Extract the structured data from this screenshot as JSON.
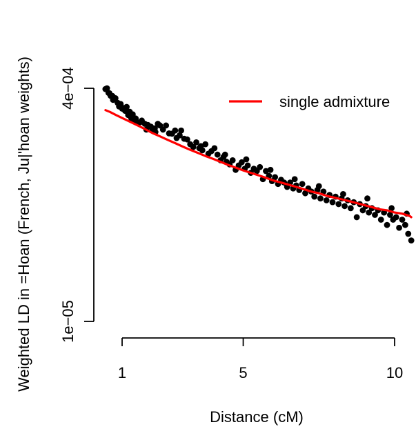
{
  "chart_data": {
    "type": "scatter",
    "xlabel": "Distance (cM)",
    "ylabel": "Weighted LD in =Hoan (French, Ju|'hoan weights)",
    "xlim": [
      0.5,
      10.5
    ],
    "ylim": [
      1e-05,
      0.0004
    ],
    "x_ticks": [
      1,
      5,
      10
    ],
    "x_tick_labels": [
      "1",
      "5",
      "10"
    ],
    "y_ticks": [
      1e-05,
      0.0004
    ],
    "y_tick_labels": [
      "1e−05",
      "4e−04"
    ],
    "grid": false,
    "legend_position": "top-right",
    "series": [
      {
        "kind": "points",
        "marker": "filled-circle",
        "color": "#000000",
        "points": [
          [
            0.45,
            0.000395
          ],
          [
            0.5,
            0.0004
          ],
          [
            0.55,
            0.000372
          ],
          [
            0.58,
            0.00037
          ],
          [
            0.62,
            0.000355
          ],
          [
            0.68,
            0.000354
          ],
          [
            0.7,
            0.000333
          ],
          [
            0.78,
            0.000342
          ],
          [
            0.85,
            0.000318
          ],
          [
            0.9,
            0.0003
          ],
          [
            0.95,
            0.000312
          ],
          [
            1.0,
            0.00029
          ],
          [
            1.05,
            0.000292
          ],
          [
            1.1,
            0.00028
          ],
          [
            1.15,
            0.000298
          ],
          [
            1.2,
            0.000262
          ],
          [
            1.25,
            0.000276
          ],
          [
            1.3,
            0.00025
          ],
          [
            1.35,
            0.000265
          ],
          [
            1.45,
            0.000248
          ],
          [
            1.5,
            0.000233
          ],
          [
            1.58,
            0.000233
          ],
          [
            1.65,
            0.00024
          ],
          [
            1.75,
            0.000228
          ],
          [
            1.8,
            0.000208
          ],
          [
            1.85,
            0.000224
          ],
          [
            1.95,
            0.000218
          ],
          [
            2.0,
            0.000205
          ],
          [
            2.08,
            0.000212
          ],
          [
            2.18,
            0.000228
          ],
          [
            2.25,
            0.000222
          ],
          [
            2.35,
            0.000208
          ],
          [
            2.45,
            0.000222
          ],
          [
            2.55,
            0.000196
          ],
          [
            2.65,
            0.000195
          ],
          [
            2.75,
            0.000205
          ],
          [
            2.8,
            0.000182
          ],
          [
            2.95,
            0.000205
          ],
          [
            3.05,
            0.00018
          ],
          [
            3.15,
            0.000178
          ],
          [
            3.25,
            0.000165
          ],
          [
            3.35,
            0.000158
          ],
          [
            3.45,
            0.00017
          ],
          [
            3.55,
            0.000155
          ],
          [
            3.65,
            0.00015
          ],
          [
            3.75,
            0.000165
          ],
          [
            3.85,
            0.000142
          ],
          [
            3.95,
            0.000148
          ],
          [
            4.05,
            0.000155
          ],
          [
            4.15,
            0.00014
          ],
          [
            4.25,
            0.000128
          ],
          [
            4.35,
            0.000135
          ],
          [
            4.45,
            0.000125
          ],
          [
            4.55,
            0.00012
          ],
          [
            4.65,
            0.000128
          ],
          [
            4.75,
            0.00011
          ],
          [
            4.85,
            0.000118
          ],
          [
            4.95,
            0.000124
          ],
          [
            5.05,
            0.000112
          ],
          [
            5.15,
            0.000118
          ],
          [
            5.25,
            0.000105
          ],
          [
            5.35,
            0.000112
          ],
          [
            5.45,
            0.000108
          ],
          [
            5.55,
            0.000115
          ],
          [
            5.65,
            9.5e-05
          ],
          [
            5.75,
            0.000108
          ],
          [
            5.85,
            0.0001
          ],
          [
            5.95,
            9.2e-05
          ],
          [
            6.05,
            9.8e-05
          ],
          [
            6.15,
            8.8e-05
          ],
          [
            6.25,
            9.4e-05
          ],
          [
            6.35,
            9e-05
          ],
          [
            6.45,
            8.4e-05
          ],
          [
            6.55,
            9e-05
          ],
          [
            6.65,
            8.2e-05
          ],
          [
            6.75,
            8.6e-05
          ],
          [
            6.85,
            8e-05
          ],
          [
            6.95,
            8.8e-05
          ],
          [
            7.05,
            7.6e-05
          ],
          [
            7.15,
            8.2e-05
          ],
          [
            7.25,
            7.8e-05
          ],
          [
            7.35,
            7.2e-05
          ],
          [
            7.45,
            8e-05
          ],
          [
            7.55,
            7e-05
          ],
          [
            7.65,
            7.8e-05
          ],
          [
            7.75,
            6.8e-05
          ],
          [
            7.85,
            7.4e-05
          ],
          [
            7.95,
            6.6e-05
          ],
          [
            8.05,
            7.2e-05
          ],
          [
            8.15,
            6.4e-05
          ],
          [
            8.25,
            7e-05
          ],
          [
            8.35,
            6.2e-05
          ],
          [
            8.45,
            6.8e-05
          ],
          [
            8.55,
            6e-05
          ],
          [
            8.65,
            6.6e-05
          ],
          [
            8.75,
            5.2e-05
          ],
          [
            8.85,
            6.4e-05
          ],
          [
            8.95,
            5.8e-05
          ],
          [
            9.05,
            6.2e-05
          ],
          [
            9.15,
            5.6e-05
          ],
          [
            9.25,
            6e-05
          ],
          [
            9.35,
            5.4e-05
          ],
          [
            9.45,
            5.8e-05
          ],
          [
            9.55,
            5e-05
          ],
          [
            9.65,
            5.6e-05
          ],
          [
            9.75,
            4.6e-05
          ],
          [
            9.85,
            5.4e-05
          ],
          [
            9.95,
            5e-05
          ],
          [
            10.05,
            5.2e-05
          ],
          [
            10.15,
            4.4e-05
          ],
          [
            10.25,
            5e-05
          ],
          [
            10.35,
            4.6e-05
          ],
          [
            10.45,
            4e-05
          ],
          [
            10.55,
            3.6e-05
          ],
          [
            0.95,
            0.00031
          ],
          [
            1.4,
            0.00024
          ],
          [
            2.1,
            0.0002
          ],
          [
            2.9,
            0.00019
          ],
          [
            3.6,
            0.00016
          ],
          [
            4.4,
            0.00014
          ],
          [
            5.1,
            0.00013
          ],
          [
            5.9,
            0.00011
          ],
          [
            6.7,
            9.5e-05
          ],
          [
            7.5,
            8.5e-05
          ],
          [
            8.3,
            7.5e-05
          ],
          [
            9.1,
            7e-05
          ],
          [
            9.9,
            6e-05
          ],
          [
            10.4,
            5.5e-05
          ]
        ]
      },
      {
        "name": "single admixture",
        "kind": "line",
        "color": "#ff0000",
        "points": [
          [
            0.45,
            0.000283
          ],
          [
            0.6,
            0.000275
          ],
          [
            0.8,
            0.000262
          ],
          [
            1.0,
            0.00025
          ],
          [
            1.25,
            0.000236
          ],
          [
            1.5,
            0.000223
          ],
          [
            1.75,
            0.00021
          ],
          [
            2.0,
            0.000197
          ],
          [
            2.25,
            0.000187
          ],
          [
            2.5,
            0.000177
          ],
          [
            2.75,
            0.000168
          ],
          [
            3.0,
            0.000159
          ],
          [
            3.25,
            0.000151
          ],
          [
            3.5,
            0.000144
          ],
          [
            3.75,
            0.000137
          ],
          [
            4.0,
            0.000131
          ],
          [
            4.25,
            0.000125
          ],
          [
            4.5,
            0.000119
          ],
          [
            4.75,
            0.000114
          ],
          [
            5.0,
            0.000109
          ],
          [
            5.25,
            0.000105
          ],
          [
            5.5,
            0.000101
          ],
          [
            5.75,
            9.7e-05
          ],
          [
            6.0,
            9.3e-05
          ],
          [
            6.25,
            9e-05
          ],
          [
            6.5,
            8.7e-05
          ],
          [
            6.75,
            8.4e-05
          ],
          [
            7.0,
            8.1e-05
          ],
          [
            7.25,
            7.8e-05
          ],
          [
            7.5,
            7.6e-05
          ],
          [
            7.75,
            7.3e-05
          ],
          [
            8.0,
            7.1e-05
          ],
          [
            8.25,
            6.9e-05
          ],
          [
            8.5,
            6.7e-05
          ],
          [
            8.75,
            6.5e-05
          ],
          [
            9.0,
            6.3e-05
          ],
          [
            9.25,
            6.1e-05
          ],
          [
            9.5,
            5.9e-05
          ],
          [
            9.75,
            5.8e-05
          ],
          [
            10.0,
            5.6e-05
          ],
          [
            10.25,
            5.5e-05
          ],
          [
            10.5,
            5.3e-05
          ],
          [
            10.55,
            5.2e-05
          ]
        ]
      }
    ],
    "legend": [
      {
        "label": "single admixture",
        "color": "#ff0000"
      }
    ]
  }
}
